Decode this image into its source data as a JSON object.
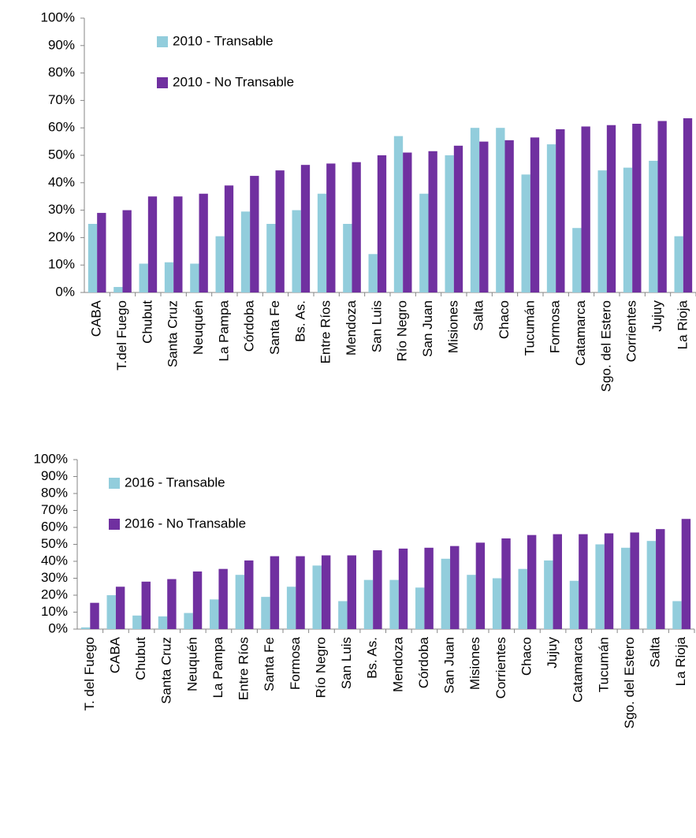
{
  "chart_data": [
    {
      "type": "bar",
      "legend": "upper left",
      "categories": [
        "CABA",
        "T.del Fuego",
        "Chubut",
        "Santa Cruz",
        "Neuquén",
        "La Pampa",
        "Córdoba",
        "Santa Fe",
        "Bs. As.",
        "Entre Ríos",
        "Mendoza",
        "San Luis",
        "Río Negro",
        "San Juan",
        "Misiones",
        "Salta",
        "Chaco",
        "Tucumán",
        "Formosa",
        "Catamarca",
        "Sgo. del Estero",
        "Corrientes",
        "Jujuy",
        "La Rioja"
      ],
      "series": [
        {
          "name": "2010 - Transable",
          "color": "#92cddc",
          "values": [
            25,
            2,
            10.5,
            11,
            10.5,
            20.5,
            29.5,
            25,
            30,
            36,
            25,
            14,
            57,
            36,
            50,
            60,
            60,
            43,
            54,
            23.5,
            44.5,
            45.5,
            48,
            20.5
          ]
        },
        {
          "name": "2010 - No Transable",
          "color": "#7030a0",
          "values": [
            29,
            30,
            35,
            35,
            36,
            39,
            42.5,
            44.5,
            46.5,
            47,
            47.5,
            50,
            51,
            51.5,
            53.5,
            55,
            55.5,
            56.5,
            59.5,
            60.5,
            61,
            61.5,
            62.5,
            63.5
          ]
        }
      ],
      "ylim": [
        0,
        100
      ],
      "yticks": [
        {
          "value": 0,
          "label": "0%"
        },
        {
          "value": 10,
          "label": "10%"
        },
        {
          "value": 20,
          "label": "20%"
        },
        {
          "value": 30,
          "label": "30%"
        },
        {
          "value": 40,
          "label": "40%"
        },
        {
          "value": 50,
          "label": "50%"
        },
        {
          "value": 60,
          "label": "60%"
        },
        {
          "value": 70,
          "label": "70%"
        },
        {
          "value": 80,
          "label": "80%"
        },
        {
          "value": 90,
          "label": "90%"
        },
        {
          "value": 100,
          "label": "100%"
        }
      ]
    },
    {
      "type": "bar",
      "legend": "upper left",
      "categories": [
        "T. del Fuego",
        "CABA",
        "Chubut",
        "Santa Cruz",
        "Neuquén",
        "La Pampa",
        "Entre Ríos",
        "Santa Fe",
        "Formosa",
        "Río Negro",
        "San Luis",
        "Bs. As.",
        "Mendoza",
        "Córdoba",
        "San Juan",
        "Misiones",
        "Corrientes",
        "Chaco",
        "Jujuy",
        "Catamarca",
        "Tucumán",
        "Sgo. del Estero",
        "Salta",
        "La Rioja"
      ],
      "series": [
        {
          "name": "2016 - Transable",
          "color": "#92cddc",
          "values": [
            1,
            20,
            8,
            7.5,
            9.5,
            17.5,
            32,
            19,
            25,
            37.5,
            16.5,
            29,
            29,
            24.5,
            41.5,
            32,
            30,
            35.5,
            40.5,
            28.5,
            50,
            48,
            52,
            16.5
          ]
        },
        {
          "name": "2016 - No Transable",
          "color": "#7030a0",
          "values": [
            15.5,
            25,
            28,
            29.5,
            34,
            35.5,
            40.5,
            43,
            43,
            43.5,
            43.5,
            46.5,
            47.5,
            48,
            49,
            51,
            53.5,
            55.5,
            56,
            56,
            56.5,
            57,
            59,
            65
          ]
        }
      ],
      "ylim": [
        0,
        100
      ],
      "yticks": [
        {
          "value": 0,
          "label": "0%"
        },
        {
          "value": 10,
          "label": "10%"
        },
        {
          "value": 20,
          "label": "20%"
        },
        {
          "value": 30,
          "label": "30%"
        },
        {
          "value": 40,
          "label": "40%"
        },
        {
          "value": 50,
          "label": "50%"
        },
        {
          "value": 60,
          "label": "60%"
        },
        {
          "value": 70,
          "label": "70%"
        },
        {
          "value": 80,
          "label": "80%"
        },
        {
          "value": 90,
          "label": "90%"
        },
        {
          "value": 100,
          "label": "100%"
        }
      ]
    }
  ]
}
